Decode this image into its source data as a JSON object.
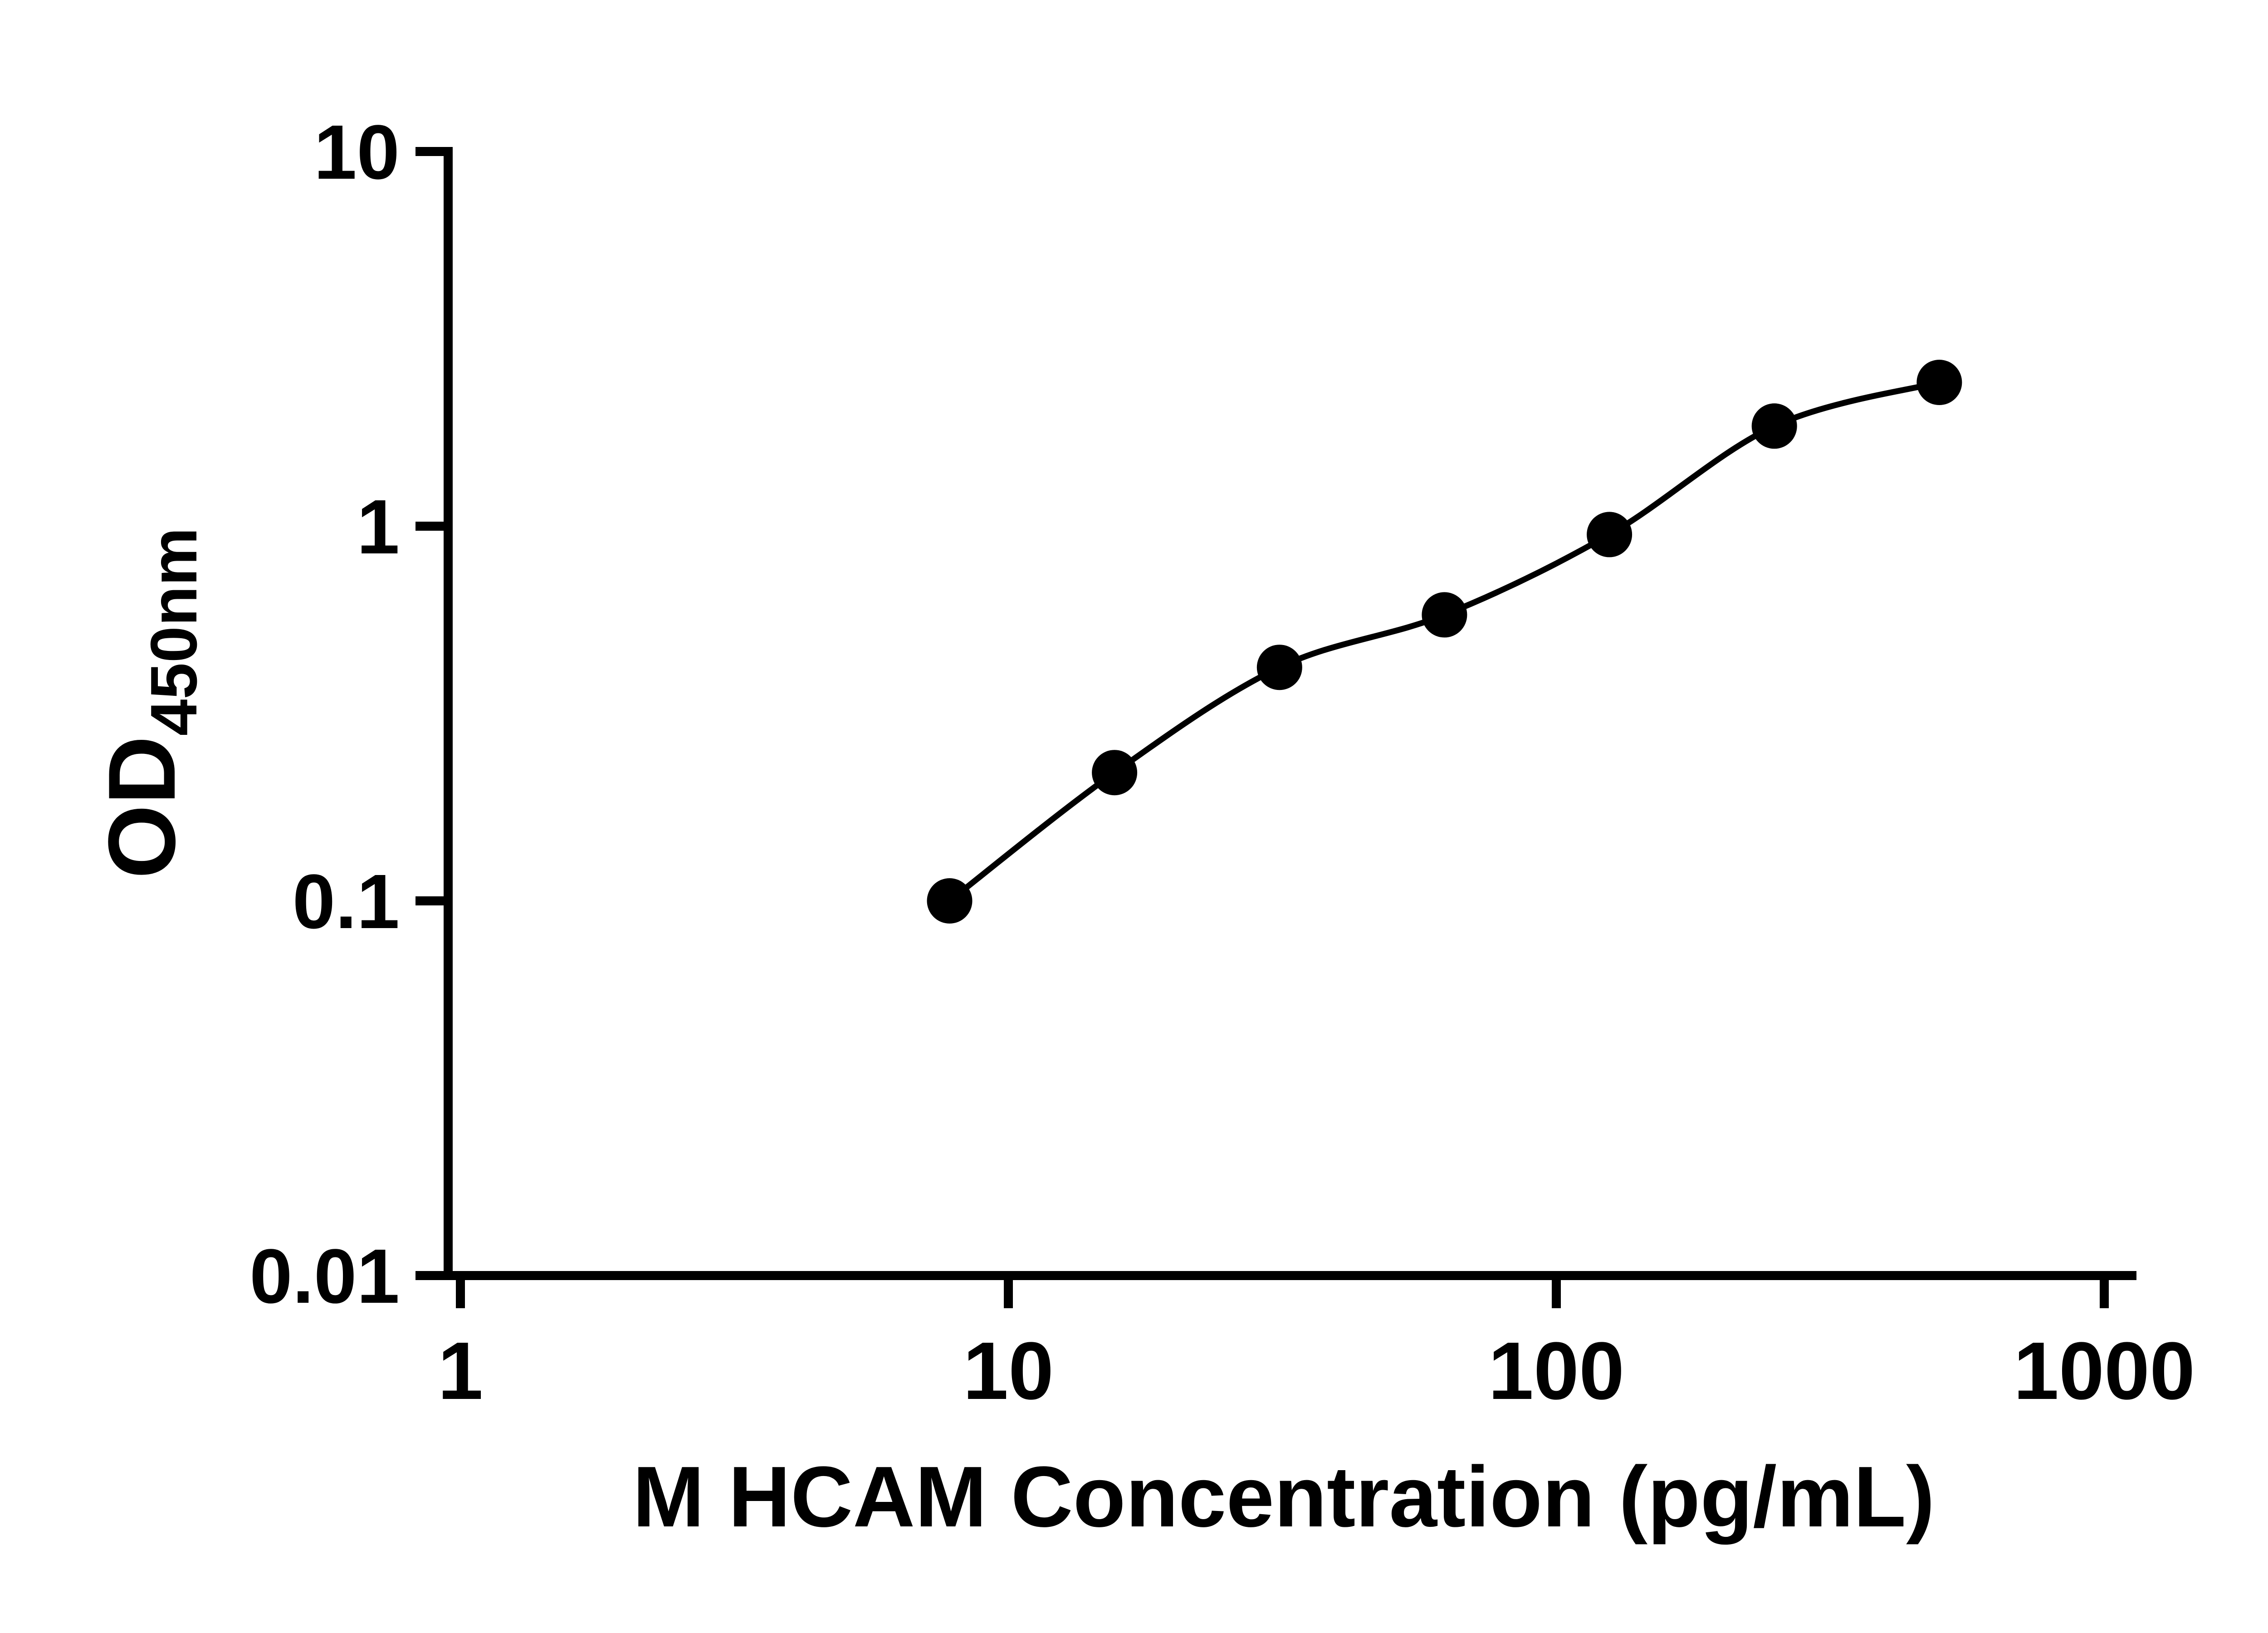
{
  "page": {
    "background": "#ffffff"
  },
  "chart_data": {
    "type": "scatter",
    "subtype": "elisa-standard-curve",
    "title": "",
    "xlabel": "M HCAM Concentration (pg/mL)",
    "ylabel_main": "OD",
    "ylabel_sub": "450nm",
    "x_scale": "log10",
    "y_scale": "log10",
    "xlim": [
      1,
      1000
    ],
    "ylim": [
      0.01,
      10
    ],
    "x_ticks": [
      1,
      10,
      100,
      1000
    ],
    "x_tick_labels": [
      "1",
      "10",
      "100",
      "1000"
    ],
    "y_ticks": [
      10,
      1,
      0.1,
      0.01
    ],
    "y_tick_labels": [
      "10",
      "1",
      "0.1",
      "0.01"
    ],
    "x": [
      7.8125,
      15.625,
      31.25,
      62.5,
      125,
      250,
      500
    ],
    "y": [
      0.1,
      0.22,
      0.42,
      0.58,
      0.95,
      1.85,
      2.42
    ],
    "grid": false,
    "legend_position": "none",
    "marker": "filled-circle",
    "marker_color": "#000000",
    "line_color": "#000000",
    "axis_color": "#000000",
    "curve_style": "smooth-fit"
  }
}
